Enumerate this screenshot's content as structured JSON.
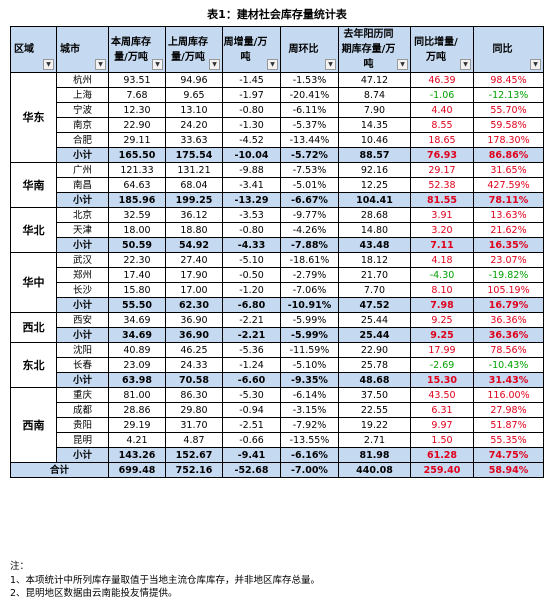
{
  "title": "表1：建材社会库存量统计表",
  "headers": [
    "区域",
    "城市",
    "本周库存量/万吨",
    "上周库存量/万吨",
    "周增量/万吨",
    "周环比",
    "去年阳历同期库存量/万吨",
    "同比增量/万吨",
    "同比"
  ],
  "groups": [
    {
      "region": "华东",
      "rows": [
        [
          "杭州",
          "93.51",
          "94.96",
          "-1.45",
          "-1.53%",
          "47.12",
          "46.39",
          "98.45%"
        ],
        [
          "上海",
          "7.68",
          "9.65",
          "-1.97",
          "-20.41%",
          "8.74",
          "-1.06",
          "-12.13%"
        ],
        [
          "宁波",
          "12.30",
          "13.10",
          "-0.80",
          "-6.11%",
          "7.90",
          "4.40",
          "55.70%"
        ],
        [
          "南京",
          "22.90",
          "24.20",
          "-1.30",
          "-5.37%",
          "14.35",
          "8.55",
          "59.58%"
        ],
        [
          "合肥",
          "29.11",
          "33.63",
          "-4.52",
          "-13.44%",
          "10.46",
          "18.65",
          "178.30%"
        ]
      ],
      "subtotal": [
        "小计",
        "165.50",
        "175.54",
        "-10.04",
        "-5.72%",
        "88.57",
        "76.93",
        "86.86%"
      ]
    },
    {
      "region": "华南",
      "rows": [
        [
          "广州",
          "121.33",
          "131.21",
          "-9.88",
          "-7.53%",
          "92.16",
          "29.17",
          "31.65%"
        ],
        [
          "南昌",
          "64.63",
          "68.04",
          "-3.41",
          "-5.01%",
          "12.25",
          "52.38",
          "427.59%"
        ]
      ],
      "subtotal": [
        "小计",
        "185.96",
        "199.25",
        "-13.29",
        "-6.67%",
        "104.41",
        "81.55",
        "78.11%"
      ]
    },
    {
      "region": "华北",
      "rows": [
        [
          "北京",
          "32.59",
          "36.12",
          "-3.53",
          "-9.77%",
          "28.68",
          "3.91",
          "13.63%"
        ],
        [
          "天津",
          "18.00",
          "18.80",
          "-0.80",
          "-4.26%",
          "14.80",
          "3.20",
          "21.62%"
        ]
      ],
      "subtotal": [
        "小计",
        "50.59",
        "54.92",
        "-4.33",
        "-7.88%",
        "43.48",
        "7.11",
        "16.35%"
      ]
    },
    {
      "region": "华中",
      "rows": [
        [
          "武汉",
          "22.30",
          "27.40",
          "-5.10",
          "-18.61%",
          "18.12",
          "4.18",
          "23.07%"
        ],
        [
          "郑州",
          "17.40",
          "17.90",
          "-0.50",
          "-2.79%",
          "21.70",
          "-4.30",
          "-19.82%"
        ],
        [
          "长沙",
          "15.80",
          "17.00",
          "-1.20",
          "-7.06%",
          "7.70",
          "8.10",
          "105.19%"
        ]
      ],
      "subtotal": [
        "小计",
        "55.50",
        "62.30",
        "-6.80",
        "-10.91%",
        "47.52",
        "7.98",
        "16.79%"
      ]
    },
    {
      "region": "西北",
      "rows": [
        [
          "西安",
          "34.69",
          "36.90",
          "-2.21",
          "-5.99%",
          "25.44",
          "9.25",
          "36.36%"
        ]
      ],
      "subtotal": [
        "小计",
        "34.69",
        "36.90",
        "-2.21",
        "-5.99%",
        "25.44",
        "9.25",
        "36.36%"
      ]
    },
    {
      "region": "东北",
      "rows": [
        [
          "沈阳",
          "40.89",
          "46.25",
          "-5.36",
          "-11.59%",
          "22.90",
          "17.99",
          "78.56%"
        ],
        [
          "长春",
          "23.09",
          "24.33",
          "-1.24",
          "-5.10%",
          "25.78",
          "-2.69",
          "-10.43%"
        ]
      ],
      "subtotal": [
        "小计",
        "63.98",
        "70.58",
        "-6.60",
        "-9.35%",
        "48.68",
        "15.30",
        "31.43%"
      ]
    },
    {
      "region": "西南",
      "rows": [
        [
          "重庆",
          "81.00",
          "86.30",
          "-5.30",
          "-6.14%",
          "37.50",
          "43.50",
          "116.00%"
        ],
        [
          "成都",
          "28.86",
          "29.80",
          "-0.94",
          "-3.15%",
          "22.55",
          "6.31",
          "27.98%"
        ],
        [
          "贵阳",
          "29.19",
          "31.70",
          "-2.51",
          "-7.92%",
          "19.22",
          "9.97",
          "51.87%"
        ],
        [
          "昆明",
          "4.21",
          "4.87",
          "-0.66",
          "-13.55%",
          "2.71",
          "1.50",
          "55.35%"
        ]
      ],
      "subtotal": [
        "小计",
        "143.26",
        "152.67",
        "-9.41",
        "-6.16%",
        "81.98",
        "61.28",
        "74.75%"
      ]
    }
  ],
  "total": [
    "合计",
    "699.48",
    "752.16",
    "-52.68",
    "-7.00%",
    "440.08",
    "259.40",
    "58.94%"
  ],
  "notes": [
    "注：",
    "1、本项统计中所列库存量取值于当地主流仓库库存，并非地区库存总量。",
    "2、昆明地区数据由云南能投友情提供。"
  ],
  "colors": {
    "header_bg": "#c5d9f1",
    "red_text": "#e0001b",
    "green_text": "#00a000"
  }
}
